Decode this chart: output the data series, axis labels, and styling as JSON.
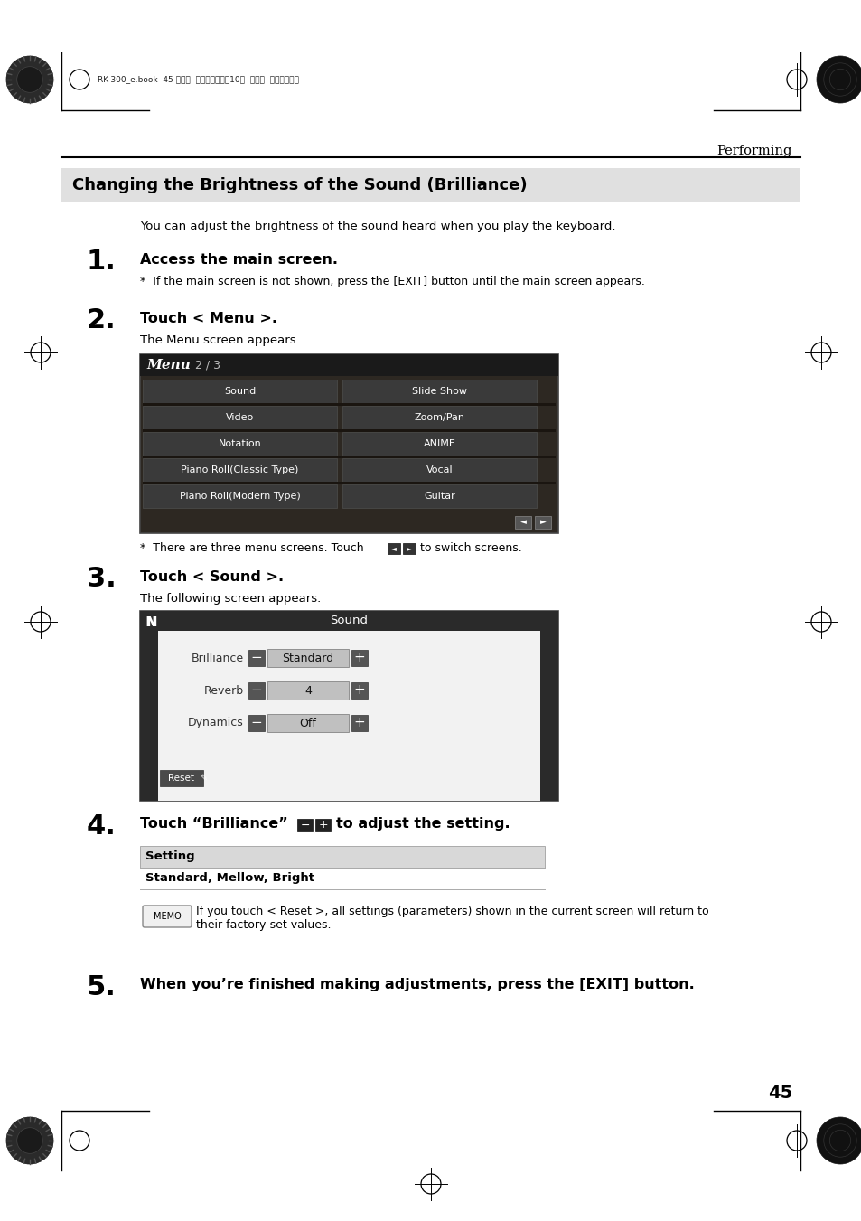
{
  "page_title": "Performing",
  "header_text": "RK-300_e.book  45 ページ  ２００８年９月10日  水曜日  午後４時６分",
  "section_title": "Changing the Brightness of the Sound (Brilliance)",
  "section_intro": "You can adjust the brightness of the sound heard when you play the keyboard.",
  "step1_num": "1.",
  "step1_title": "Access the main screen.",
  "step1_note": "*  If the main screen is not shown, press the [EXIT] button until the main screen appears.",
  "step2_num": "2.",
  "step2_title": "Touch < Menu >.",
  "step2_desc": "The Menu screen appears.",
  "step3_num": "3.",
  "step3_title": "Touch < Sound >.",
  "step3_desc": "The following screen appears.",
  "step3_note_pre": "*  There are three menu screens. Touch",
  "step3_note_post": "to switch screens.",
  "step4_num": "4.",
  "step4_pre": "Touch “Brilliance”",
  "step4_post": "to adjust the setting.",
  "step5_num": "5.",
  "step5_title": "When you’re finished making adjustments, press the [EXIT] button.",
  "table_header": "Setting",
  "table_row": "Standard, Mellow, Bright",
  "memo_text": "If you touch < Reset >, all settings (parameters) shown in the current screen will return to\ntheir factory-set values.",
  "page_number": "45",
  "menu_items_left": [
    "Sound",
    "Video",
    "Notation",
    "Piano Roll(Classic Type)",
    "Piano Roll(Modern Type)"
  ],
  "menu_items_right": [
    "Slide Show",
    "Zoom/Pan",
    "ANIME",
    "Vocal",
    "Guitar"
  ]
}
